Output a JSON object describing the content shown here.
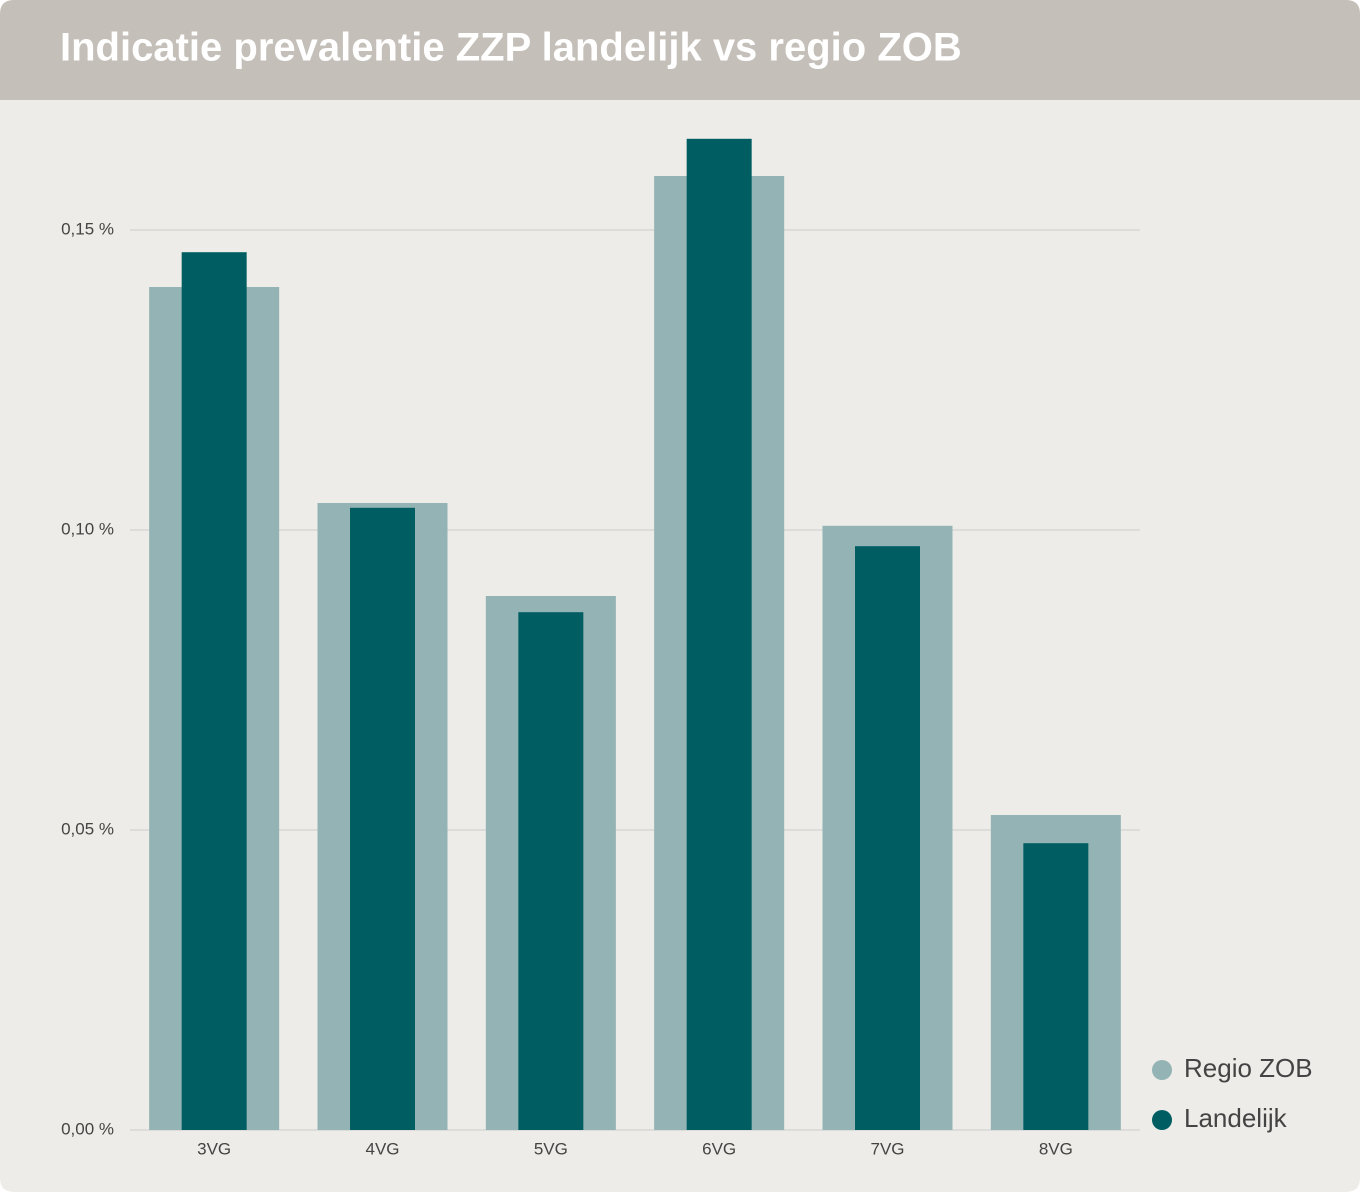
{
  "chart_data": {
    "type": "bar",
    "title": "Indicatie prevalentie ZZP landelijk vs regio ZOB",
    "categories": [
      "3VG",
      "4VG",
      "5VG",
      "6VG",
      "7VG",
      "8VG"
    ],
    "series": [
      {
        "name": "Regio ZOB",
        "color": "#93b3b4",
        "values": [
          0.1405,
          0.1045,
          0.089,
          0.159,
          0.1007,
          0.0525
        ]
      },
      {
        "name": "Landelijk",
        "color": "#005e63",
        "values": [
          0.1463,
          0.1037,
          0.0863,
          0.1652,
          0.0973,
          0.0478
        ]
      }
    ],
    "ylim": [
      0,
      0.17
    ],
    "yticks": [
      {
        "value": 0,
        "label": "0,00 %"
      },
      {
        "value": 0.05,
        "label": "0,05 %"
      },
      {
        "value": 0.1,
        "label": "0,10 %"
      },
      {
        "value": 0.15,
        "label": "0,15 %"
      }
    ],
    "grid": true,
    "legend": "bottom-right"
  }
}
